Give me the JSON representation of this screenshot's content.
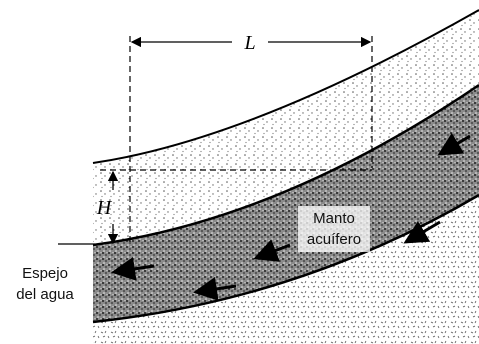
{
  "labels": {
    "length": "L",
    "head": "H",
    "aquifer": [
      "Manto",
      "acuífero"
    ],
    "water_table": [
      "Espejo",
      "del agua"
    ]
  }
}
